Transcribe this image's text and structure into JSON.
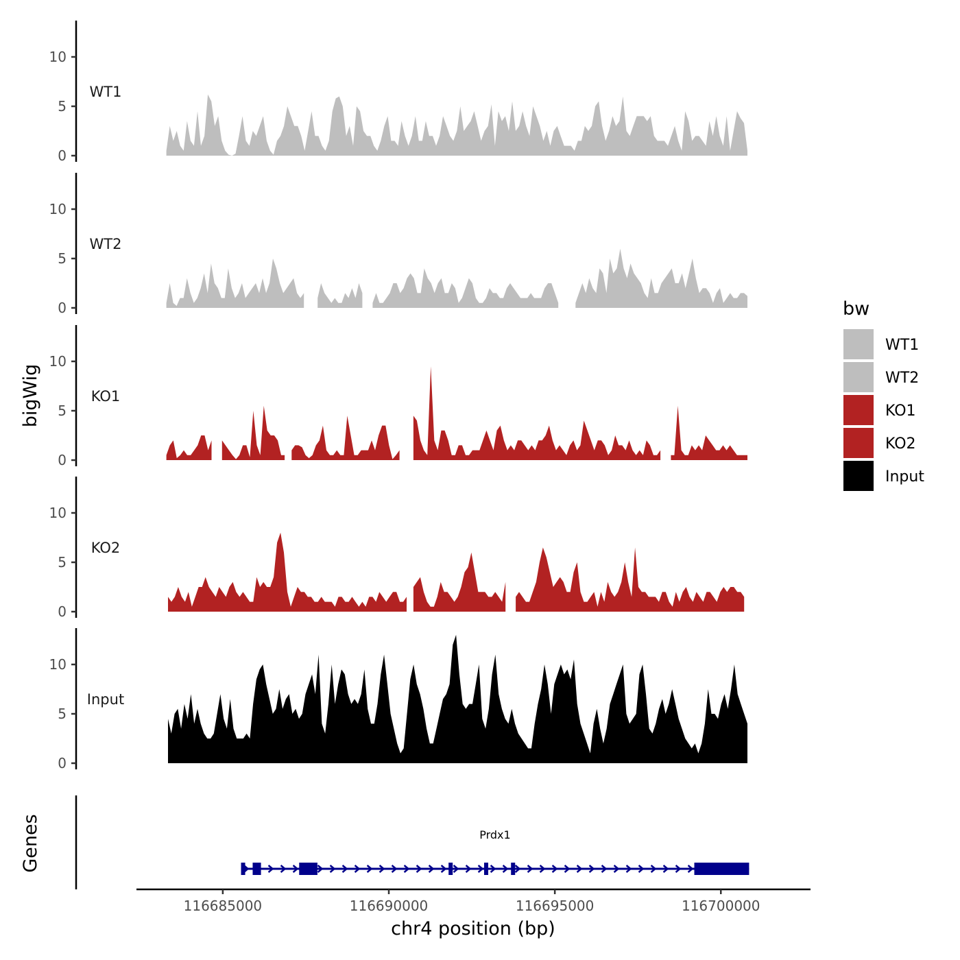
{
  "chart_data": {
    "type": "area",
    "title": "",
    "xlabel": "chr4 position (bp)",
    "ylabel": "bigWig",
    "genes_panel_label": "Genes",
    "xlim": [
      116682400,
      116702700
    ],
    "ylim": [
      0,
      14
    ],
    "x_ticks": [
      116685000,
      116690000,
      116695000,
      116700000
    ],
    "x_tick_labels": [
      "116685000",
      "116690000",
      "116695000",
      "116700000"
    ],
    "y_ticks": [
      0,
      5,
      10
    ],
    "y_tick_labels": [
      "0",
      "5",
      "10"
    ],
    "legend": {
      "title": "bw",
      "position": "right",
      "entries": [
        {
          "label": "WT1",
          "color": "#bebebe"
        },
        {
          "label": "WT2",
          "color": "#bebebe"
        },
        {
          "label": "KO1",
          "color": "#b22222"
        },
        {
          "label": "KO2",
          "color": "#b22222"
        },
        {
          "label": "Input",
          "color": "#000000"
        }
      ]
    },
    "series": [
      {
        "name": "WT1",
        "color": "#bebebe",
        "x_start": 116683300,
        "x_end": 116700800,
        "values": [
          0.5,
          3,
          1.5,
          2.5,
          1,
          0.5,
          3.5,
          1.5,
          1,
          4.5,
          1,
          2,
          6.2,
          5.5,
          3,
          4,
          1.5,
          0.5,
          0.1,
          0,
          0.2,
          2,
          4,
          1.5,
          1,
          2.5,
          2,
          3,
          4,
          1.5,
          0.5,
          0.1,
          1.5,
          2,
          3,
          5,
          4,
          3,
          3,
          2,
          0.5,
          2.5,
          4.5,
          2,
          2,
          1,
          0.5,
          1.5,
          4.5,
          5.8,
          6,
          5,
          2,
          3,
          1,
          5,
          4.5,
          2.5,
          2,
          2,
          1,
          0.5,
          1.5,
          3,
          4,
          1.5,
          1.5,
          1,
          3.5,
          2,
          1,
          2,
          4,
          1.5,
          1.5,
          3.5,
          2,
          2,
          1,
          2,
          4,
          3,
          2,
          1.5,
          2.5,
          5,
          2.5,
          3,
          3.5,
          4.5,
          3,
          1.5,
          2.5,
          3,
          5.2,
          1,
          4.5,
          3.5,
          4,
          2.5,
          5.5,
          2.5,
          3,
          4.5,
          3,
          2,
          5,
          4,
          3,
          1.5,
          2.5,
          1,
          2.5,
          3,
          2,
          1,
          1,
          1,
          0.5,
          1.5,
          1.5,
          3,
          2.5,
          3,
          5,
          5.5,
          3,
          1.5,
          2.5,
          4,
          3,
          3.5,
          6,
          2.5,
          2,
          3,
          4,
          4,
          4,
          3.5,
          4,
          2,
          1.5,
          1.5,
          1.5,
          1,
          2,
          3,
          1.5,
          0.5,
          4.5,
          3.5,
          1.5,
          2,
          2,
          1.5,
          1,
          3.5,
          2,
          4,
          2,
          1,
          4,
          0.5,
          2.5,
          4.5,
          3.8,
          3.3,
          0.5
        ],
        "gaps": []
      },
      {
        "name": "WT2",
        "color": "#bebebe",
        "x_start": 116683300,
        "x_end": 116700800,
        "values": [
          0.5,
          2.5,
          0.5,
          0.2,
          1,
          1,
          3,
          1.5,
          0.5,
          1,
          2,
          3.5,
          1.5,
          4.5,
          2.5,
          2,
          1,
          1,
          4,
          2,
          1,
          1.5,
          2.5,
          1,
          1.5,
          2,
          2.5,
          1.5,
          3,
          1.5,
          2.5,
          5,
          4,
          2.5,
          1.5,
          2,
          2.5,
          3,
          1.5,
          1,
          1.5,
          2,
          1.5,
          1.5,
          1,
          2.5,
          1.5,
          1,
          0.5,
          1,
          0.5,
          0.5,
          1.5,
          1,
          2,
          1,
          2.5,
          1.5,
          1,
          0.5,
          0.5,
          1.5,
          0.5,
          0.5,
          1,
          1.5,
          2.5,
          2.5,
          1.5,
          2,
          3,
          3.5,
          3,
          1.5,
          1.5,
          4,
          3,
          2.5,
          1.5,
          2.5,
          3,
          1.5,
          1.5,
          2.5,
          2,
          0.5,
          1,
          2,
          3,
          2.5,
          1,
          0.5,
          0.5,
          1,
          2,
          1.5,
          1.5,
          1,
          1,
          2,
          2.5,
          2,
          1.5,
          1,
          1,
          1,
          1.5,
          1,
          1,
          1,
          2,
          2.5,
          2.5,
          1.5,
          0.5,
          1,
          0.5,
          0,
          0,
          0.5,
          1.5,
          2.5,
          1.5,
          3,
          2,
          1.5,
          4,
          3.5,
          1.5,
          5,
          3.5,
          4,
          6,
          4,
          3,
          4.5,
          3.5,
          3,
          2.5,
          1.5,
          1,
          3,
          1.5,
          1.5,
          2.5,
          3,
          3.5,
          4,
          2.5,
          2.5,
          3.5,
          2,
          3.5,
          5,
          3,
          1.5,
          2,
          2,
          1.5,
          0.5,
          1.5,
          2,
          0.5,
          1,
          1.5,
          1,
          1,
          1.5,
          1.5,
          1.2
        ],
        "gaps": [
          [
            0.24,
            0.255
          ],
          [
            0.34,
            0.355
          ],
          [
            0.68,
            0.7
          ]
        ]
      },
      {
        "name": "KO1",
        "color": "#b22222",
        "x_start": 116683300,
        "x_end": 116700800,
        "values": [
          0.5,
          1.5,
          2,
          0.2,
          0.5,
          1,
          0.5,
          0.5,
          1,
          1.5,
          2.5,
          2.5,
          1,
          2,
          3,
          2.5,
          2,
          1.5,
          1,
          0.5,
          0.1,
          0.5,
          1.5,
          1.5,
          0.3,
          5,
          1.5,
          0.5,
          5.5,
          3,
          2.5,
          2.5,
          2,
          0.5,
          0.5,
          1.5,
          1,
          1.5,
          1.5,
          1.3,
          0.5,
          0.2,
          0.5,
          1.5,
          2,
          3.5,
          1,
          0.5,
          0.5,
          1,
          0.5,
          0.5,
          4.5,
          2.5,
          0.5,
          0.5,
          1,
          1,
          1,
          2,
          1,
          2.5,
          3.5,
          3.5,
          1.5,
          0.1,
          0.5,
          1,
          1,
          2,
          1,
          4.5,
          4,
          2,
          1,
          0.5,
          9.5,
          2,
          1,
          3,
          3,
          2,
          0.5,
          0.5,
          1.5,
          1.5,
          0.5,
          0.5,
          1,
          1,
          1,
          2,
          3,
          2,
          1,
          3,
          3.5,
          2,
          1,
          1.5,
          1,
          2,
          2,
          1.5,
          1,
          1.5,
          1,
          2,
          2,
          2.5,
          3.5,
          2,
          1,
          1.5,
          1,
          0.5,
          1.5,
          2,
          1,
          1.5,
          4,
          3,
          2,
          1,
          2,
          2,
          1.5,
          0.5,
          1,
          2.5,
          1.5,
          1.5,
          1,
          2,
          1,
          0.5,
          1,
          0.5,
          2,
          1.5,
          0.5,
          0.5,
          1,
          0.5,
          2.5,
          0.5,
          0.5,
          5.5,
          1,
          0.5,
          0.5,
          1.5,
          1,
          1.5,
          1,
          2.5,
          2,
          1.5,
          1,
          1,
          1.5,
          1,
          1.5,
          1,
          0.5,
          0.5,
          0.5,
          0.5
        ],
        "gaps": [
          [
            0.08,
            0.095
          ],
          [
            0.205,
            0.215
          ],
          [
            0.405,
            0.42
          ],
          [
            0.855,
            0.865
          ]
        ]
      },
      {
        "name": "KO2",
        "color": "#b22222",
        "x_start": 116683350,
        "x_end": 116700700,
        "values": [
          1.5,
          1,
          1.5,
          2.5,
          1.5,
          1,
          2,
          0.5,
          1.5,
          2.5,
          2.5,
          3.5,
          2.5,
          2,
          1.5,
          2.5,
          2,
          1.5,
          2.5,
          3,
          2,
          1.5,
          2,
          1.5,
          1,
          1,
          3.5,
          2.5,
          3,
          2.5,
          2.5,
          3.5,
          7,
          8,
          6,
          2,
          0.5,
          1.5,
          2.5,
          2,
          2,
          1.5,
          1.5,
          1,
          1,
          1.5,
          1,
          1,
          1,
          0.5,
          1.5,
          1.5,
          1,
          1,
          1.5,
          1,
          0.5,
          1,
          0.5,
          1.5,
          1.5,
          1,
          2,
          1.5,
          1,
          1.5,
          2,
          2,
          1,
          1,
          1.5,
          2,
          2.5,
          3,
          3.5,
          2,
          1,
          0.5,
          0.5,
          1.5,
          3,
          2,
          2,
          1.5,
          1,
          1.5,
          2.5,
          4,
          4.5,
          6,
          4,
          2,
          2,
          2,
          1.5,
          1.5,
          2,
          1.5,
          1,
          3,
          4,
          2,
          1.5,
          2,
          1.5,
          1,
          1,
          2,
          3,
          5,
          6.5,
          5.5,
          4,
          2.5,
          3,
          3.5,
          3,
          2,
          2,
          4,
          5,
          2,
          1,
          1,
          1.5,
          2,
          0.5,
          2,
          1,
          3,
          2,
          1.5,
          2,
          3,
          5,
          3,
          1.5,
          6.5,
          2.5,
          2,
          2,
          1.5,
          1.5,
          1.5,
          1,
          2,
          2,
          1,
          0.5,
          2,
          1,
          2,
          2.5,
          1.5,
          1,
          2,
          1.5,
          1,
          2,
          2,
          1.5,
          1,
          2,
          2.5,
          2,
          2.5,
          2.5,
          2,
          2,
          1.5
        ],
        "gaps": [
          [
            0.415,
            0.425
          ],
          [
            0.59,
            0.6
          ]
        ]
      },
      {
        "name": "Input",
        "color": "#000000",
        "x_start": 116683350,
        "x_end": 116700800,
        "values": [
          4.5,
          3,
          5,
          5.5,
          3.5,
          6,
          4.5,
          7,
          4,
          5.5,
          4,
          3,
          2.5,
          2.5,
          3,
          5,
          7,
          4.5,
          3.5,
          6.5,
          3.5,
          2.5,
          2.5,
          2.5,
          3,
          2.5,
          6,
          8.5,
          9.5,
          10,
          8,
          6.5,
          5,
          5.5,
          7.5,
          5.5,
          6.5,
          7,
          5,
          5.5,
          4.5,
          5,
          7,
          8,
          9,
          7,
          11,
          4,
          3,
          6,
          10,
          6,
          8,
          9.5,
          9,
          7,
          6,
          6.5,
          6,
          7,
          9.5,
          5.5,
          4,
          4,
          6,
          9,
          11,
          8,
          5,
          3.5,
          2,
          1,
          1.5,
          5,
          8.5,
          10,
          8,
          7,
          5.5,
          3.5,
          2,
          2,
          3.5,
          5,
          6.5,
          7,
          8,
          12,
          13,
          9,
          6,
          5.5,
          6,
          6,
          8,
          10,
          4.5,
          3.5,
          5.5,
          9,
          11,
          7,
          5.5,
          4.5,
          4,
          5.5,
          4,
          3,
          2.5,
          2,
          1.5,
          1.5,
          4,
          6,
          7.5,
          10,
          8,
          5,
          8,
          9,
          10,
          9,
          9.5,
          8.5,
          10.5,
          6,
          4,
          3,
          2,
          1,
          4,
          5.5,
          3.5,
          2,
          3.5,
          6,
          7,
          8,
          9,
          10,
          5,
          4,
          4.5,
          5,
          9,
          10,
          7,
          3.5,
          3,
          4,
          5.5,
          6.5,
          5,
          6,
          7.5,
          6,
          4.5,
          3.5,
          2.5,
          2,
          1.5,
          2,
          1,
          2,
          4,
          7.5,
          5,
          5,
          4.5,
          6,
          7,
          5.5,
          7.5,
          10,
          7,
          6,
          5,
          4
        ]
      }
    ],
    "genes": [
      {
        "name": "Prdx1",
        "start": 116685550,
        "end": 116700850,
        "strand": "+",
        "color": "#00008b",
        "exons": [
          [
            116685550,
            116685650
          ],
          [
            116685900,
            116686150
          ],
          [
            116687300,
            116687850
          ],
          [
            116691800,
            116691920
          ],
          [
            116692870,
            116692970
          ],
          [
            116693680,
            116693790
          ],
          [
            116699200,
            116700850
          ]
        ]
      }
    ]
  }
}
